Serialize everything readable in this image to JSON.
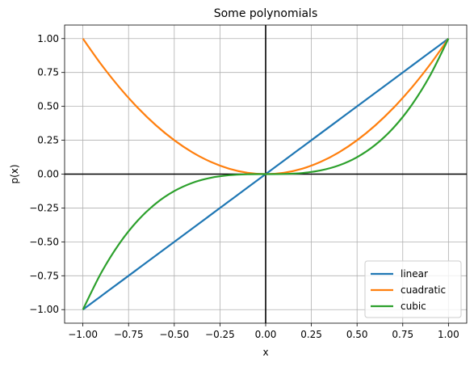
{
  "chart_data": {
    "type": "line",
    "title": "Some polynomials",
    "xlabel": "x",
    "ylabel": "p(x)",
    "xlim": [
      -1.1,
      1.1
    ],
    "ylim": [
      -1.1,
      1.1
    ],
    "grid": true,
    "legend_position": "lower-right",
    "x_ticks": [
      -1.0,
      -0.75,
      -0.5,
      -0.25,
      0.0,
      0.25,
      0.5,
      0.75,
      1.0
    ],
    "x_tick_labels": [
      "−1.00",
      "−0.75",
      "−0.50",
      "−0.25",
      "0.00",
      "0.25",
      "0.50",
      "0.75",
      "1.00"
    ],
    "y_ticks": [
      -1.0,
      -0.75,
      -0.5,
      -0.25,
      0.0,
      0.25,
      0.5,
      0.75,
      1.0
    ],
    "y_tick_labels": [
      "−1.00",
      "−0.75",
      "−0.50",
      "−0.25",
      "0.00",
      "0.25",
      "0.50",
      "0.75",
      "1.00"
    ],
    "reference_lines": [
      {
        "axis": "x",
        "value": 0
      },
      {
        "axis": "y",
        "value": 0
      }
    ],
    "x": [
      -1.0,
      -0.9,
      -0.8,
      -0.7,
      -0.6,
      -0.5,
      -0.4,
      -0.3,
      -0.2,
      -0.1,
      0.0,
      0.1,
      0.2,
      0.3,
      0.4,
      0.5,
      0.6,
      0.7,
      0.8,
      0.9,
      1.0
    ],
    "series": [
      {
        "name": "linear",
        "color": "#1f77b4",
        "values": [
          -1.0,
          -0.9,
          -0.8,
          -0.7,
          -0.6,
          -0.5,
          -0.4,
          -0.3,
          -0.2,
          -0.1,
          0.0,
          0.1,
          0.2,
          0.3,
          0.4,
          0.5,
          0.6,
          0.7,
          0.8,
          0.9,
          1.0
        ]
      },
      {
        "name": "cuadratic",
        "color": "#ff7f0e",
        "values": [
          1.0,
          0.81,
          0.64,
          0.49,
          0.36,
          0.25,
          0.16,
          0.09,
          0.04,
          0.01,
          0.0,
          0.01,
          0.04,
          0.09,
          0.16,
          0.25,
          0.36,
          0.49,
          0.64,
          0.81,
          1.0
        ]
      },
      {
        "name": "cubic",
        "color": "#2ca02c",
        "values": [
          -1.0,
          -0.729,
          -0.512,
          -0.343,
          -0.216,
          -0.125,
          -0.064,
          -0.027,
          -0.008,
          -0.001,
          0.0,
          0.001,
          0.008,
          0.027,
          0.064,
          0.125,
          0.216,
          0.343,
          0.512,
          0.729,
          1.0
        ]
      }
    ]
  }
}
